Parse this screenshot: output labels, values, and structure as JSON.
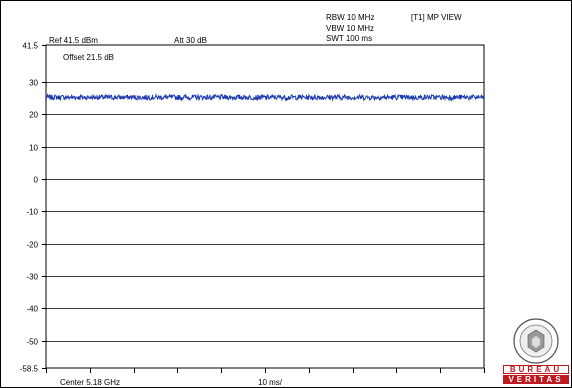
{
  "header": {
    "rbw": "RBW 10 MHz",
    "vbw": "VBW 10 MHz",
    "swt": "SWT 100 ms",
    "trace_view": "[T1] MP VIEW",
    "ref_level": "Ref 41.5 dBm",
    "attenuation": "Att  30 dB",
    "offset": "Offset 21.5 dB"
  },
  "footer": {
    "center": "Center 5.18 GHz",
    "span_per_div": "10 ms/"
  },
  "logo": {
    "top_text": "BUREAU",
    "bottom_text": "VERITAS",
    "brand_color": "#c01a21"
  },
  "chart_data": {
    "type": "line",
    "x_divisions": 10,
    "y_ticks": [
      "41.5",
      "30",
      "20",
      "10",
      "0",
      "-10",
      "-20",
      "-30",
      "-40",
      "-50",
      "-58.5"
    ],
    "ylim": [
      -58.5,
      41.5
    ],
    "grid": true,
    "series": [
      {
        "level_dbm": 25.3,
        "ripple_dbm": 0.8,
        "color": "#1f3bb0"
      }
    ]
  }
}
